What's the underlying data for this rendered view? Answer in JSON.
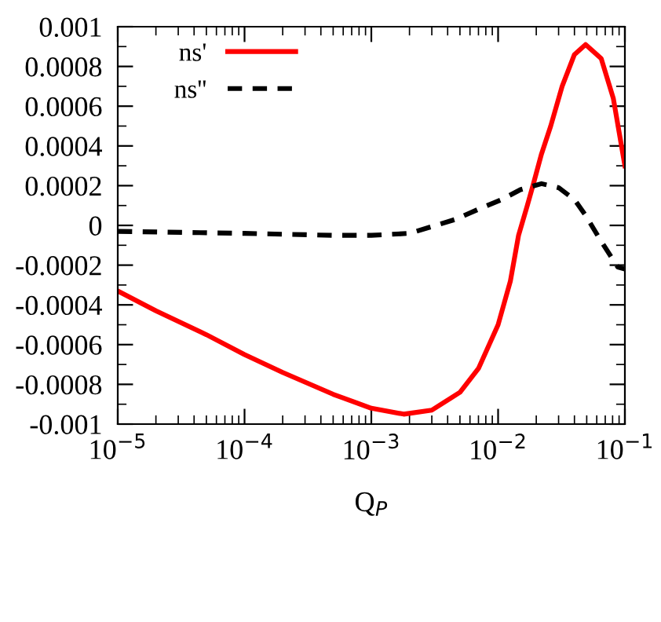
{
  "chart_data": {
    "type": "line",
    "xlabel": "Q$_{P}$",
    "log": "x",
    "xlim": [
      1e-05,
      0.1
    ],
    "xticks": [
      {
        "value": 1e-05,
        "label": "10$^{−5}$"
      },
      {
        "value": 0.0001,
        "label": "10$^{−4}$"
      },
      {
        "value": 0.001,
        "label": "10$^{−3}$"
      },
      {
        "value": 0.01,
        "label": "10$^{−2}$"
      },
      {
        "value": 0.1,
        "label": "10$^{−1}$"
      }
    ],
    "ylim": [
      -0.001,
      0.001
    ],
    "yticks": [
      -0.001,
      -0.0008,
      -0.0006,
      -0.0004,
      -0.0002,
      0,
      0.0002,
      0.0004,
      0.0006,
      0.0008,
      0.001
    ],
    "legend": "top left",
    "grid": false,
    "marker": "none",
    "series": [
      {
        "name": "ns'",
        "color": "#ff0000",
        "line_style": "solid",
        "x": [
          1e-05,
          2e-05,
          5e-05,
          0.0001,
          0.0002,
          0.0005,
          0.001,
          0.0018,
          0.003,
          0.005,
          0.007,
          0.01,
          0.0125,
          0.0145,
          0.017,
          0.019,
          0.022,
          0.026,
          0.032,
          0.04,
          0.049,
          0.065,
          0.081,
          0.1
        ],
        "values": [
          -0.00033,
          -0.00043,
          -0.00055,
          -0.00065,
          -0.00074,
          -0.00085,
          -0.00092,
          -0.00095,
          -0.00093,
          -0.00084,
          -0.00072,
          -0.0005,
          -0.00028,
          -5e-05,
          0.0001,
          0.00021,
          0.00036,
          0.0005,
          0.0007,
          0.00086,
          0.00091,
          0.00084,
          0.00064,
          0.0003
        ]
      },
      {
        "name": "ns''",
        "color": "#000000",
        "line_style": "dashed",
        "x": [
          1e-05,
          0.0001,
          0.0005,
          0.001,
          0.002,
          0.0046,
          0.0075,
          0.0107,
          0.015,
          0.022,
          0.03,
          0.04,
          0.049,
          0.065,
          0.088,
          0.1
        ],
        "values": [
          -3e-05,
          -4e-05,
          -5e-05,
          -5e-05,
          -4e-05,
          3e-05,
          9e-05,
          0.00013,
          0.00018,
          0.00021,
          0.00019,
          0.00013,
          5e-05,
          -8e-05,
          -0.00021,
          -0.00022
        ]
      }
    ]
  }
}
